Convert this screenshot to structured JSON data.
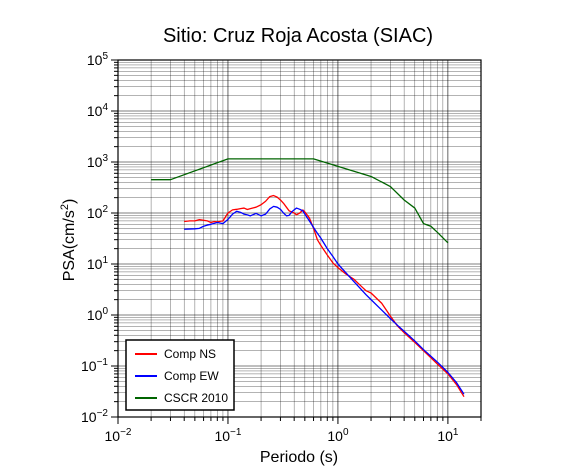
{
  "chart_data": {
    "type": "line",
    "title": "Sitio: Cruz Roja Acosta (SIAC)",
    "xlabel": "Periodo (s)",
    "ylabel": "PSA(cm/s²)",
    "ylabel_parts": {
      "base": "PSA(cm/s",
      "exp": "2",
      "close": ")"
    },
    "xscale": "log",
    "yscale": "log",
    "xlim": [
      0.01,
      20
    ],
    "ylim": [
      0.01,
      100000
    ],
    "x_ticks": [
      {
        "value": 0.01,
        "base": "10",
        "exp": "−2"
      },
      {
        "value": 0.1,
        "base": "10",
        "exp": "−1"
      },
      {
        "value": 1,
        "base": "10",
        "exp": "0"
      },
      {
        "value": 10,
        "base": "10",
        "exp": "1"
      }
    ],
    "y_ticks": [
      {
        "value": 0.01,
        "base": "10",
        "exp": "−2"
      },
      {
        "value": 0.1,
        "base": "10",
        "exp": "−1"
      },
      {
        "value": 1,
        "base": "10",
        "exp": "0"
      },
      {
        "value": 10,
        "base": "10",
        "exp": "1"
      },
      {
        "value": 100,
        "base": "10",
        "exp": "2"
      },
      {
        "value": 1000,
        "base": "10",
        "exp": "3"
      },
      {
        "value": 10000,
        "base": "10",
        "exp": "4"
      },
      {
        "value": 100000,
        "base": "10",
        "exp": "5"
      }
    ],
    "grid": true,
    "legend_position": "bottom-left",
    "series": [
      {
        "name": "Comp NS",
        "color": "#ff0000",
        "points": [
          [
            0.04,
            68
          ],
          [
            0.045,
            70
          ],
          [
            0.05,
            70
          ],
          [
            0.055,
            74
          ],
          [
            0.06,
            72
          ],
          [
            0.065,
            70
          ],
          [
            0.07,
            65
          ],
          [
            0.075,
            68
          ],
          [
            0.08,
            67
          ],
          [
            0.09,
            70
          ],
          [
            0.1,
            100
          ],
          [
            0.11,
            115
          ],
          [
            0.12,
            118
          ],
          [
            0.13,
            122
          ],
          [
            0.14,
            125
          ],
          [
            0.15,
            117
          ],
          [
            0.16,
            122
          ],
          [
            0.18,
            130
          ],
          [
            0.2,
            145
          ],
          [
            0.22,
            170
          ],
          [
            0.24,
            210
          ],
          [
            0.26,
            220
          ],
          [
            0.28,
            205
          ],
          [
            0.3,
            180
          ],
          [
            0.32,
            155
          ],
          [
            0.34,
            130
          ],
          [
            0.36,
            110
          ],
          [
            0.38,
            105
          ],
          [
            0.4,
            100
          ],
          [
            0.42,
            92
          ],
          [
            0.45,
            100
          ],
          [
            0.48,
            115
          ],
          [
            0.5,
            105
          ],
          [
            0.55,
            80
          ],
          [
            0.6,
            50
          ],
          [
            0.65,
            30
          ],
          [
            0.7,
            23
          ],
          [
            0.8,
            15
          ],
          [
            0.9,
            10.5
          ],
          [
            1.0,
            8.5
          ],
          [
            1.2,
            6.2
          ],
          [
            1.4,
            5.0
          ],
          [
            1.6,
            3.8
          ],
          [
            1.8,
            3.0
          ],
          [
            2.0,
            2.7
          ],
          [
            2.5,
            1.7
          ],
          [
            3.0,
            0.95
          ],
          [
            3.5,
            0.6
          ],
          [
            4.0,
            0.45
          ],
          [
            5.0,
            0.29
          ],
          [
            6.0,
            0.2
          ],
          [
            8.0,
            0.11
          ],
          [
            10.0,
            0.07
          ],
          [
            12.0,
            0.043
          ],
          [
            14.0,
            0.025
          ]
        ]
      },
      {
        "name": "Comp EW",
        "color": "#0000ff",
        "points": [
          [
            0.04,
            48
          ],
          [
            0.05,
            49
          ],
          [
            0.055,
            50
          ],
          [
            0.06,
            55
          ],
          [
            0.065,
            58
          ],
          [
            0.07,
            60
          ],
          [
            0.08,
            65
          ],
          [
            0.09,
            62
          ],
          [
            0.1,
            75
          ],
          [
            0.11,
            95
          ],
          [
            0.12,
            108
          ],
          [
            0.13,
            103
          ],
          [
            0.14,
            95
          ],
          [
            0.15,
            92
          ],
          [
            0.16,
            88
          ],
          [
            0.18,
            98
          ],
          [
            0.2,
            88
          ],
          [
            0.22,
            95
          ],
          [
            0.24,
            120
          ],
          [
            0.26,
            135
          ],
          [
            0.28,
            130
          ],
          [
            0.3,
            118
          ],
          [
            0.32,
            100
          ],
          [
            0.34,
            88
          ],
          [
            0.36,
            90
          ],
          [
            0.38,
            105
          ],
          [
            0.4,
            115
          ],
          [
            0.42,
            125
          ],
          [
            0.45,
            118
          ],
          [
            0.48,
            110
          ],
          [
            0.5,
            95
          ],
          [
            0.55,
            70
          ],
          [
            0.6,
            52
          ],
          [
            0.65,
            40
          ],
          [
            0.7,
            32
          ],
          [
            0.8,
            20
          ],
          [
            0.9,
            14
          ],
          [
            1.0,
            10
          ],
          [
            1.2,
            6.5
          ],
          [
            1.4,
            4.5
          ],
          [
            1.6,
            3.3
          ],
          [
            1.8,
            2.5
          ],
          [
            2.0,
            2.0
          ],
          [
            2.5,
            1.25
          ],
          [
            3.0,
            0.85
          ],
          [
            3.5,
            0.62
          ],
          [
            4.0,
            0.48
          ],
          [
            5.0,
            0.31
          ],
          [
            6.0,
            0.21
          ],
          [
            8.0,
            0.12
          ],
          [
            10.0,
            0.075
          ],
          [
            12.0,
            0.047
          ],
          [
            14.0,
            0.028
          ]
        ]
      },
      {
        "name": "CSCR 2010",
        "color": "#006400",
        "points": [
          [
            0.02,
            450
          ],
          [
            0.03,
            450
          ],
          [
            0.1,
            1150
          ],
          [
            0.6,
            1150
          ],
          [
            2.0,
            520
          ],
          [
            3.0,
            330
          ],
          [
            4.0,
            180
          ],
          [
            5.0,
            125
          ],
          [
            6.0,
            62
          ],
          [
            7.0,
            55
          ],
          [
            8.0,
            42
          ],
          [
            10.0,
            26
          ]
        ]
      }
    ]
  }
}
